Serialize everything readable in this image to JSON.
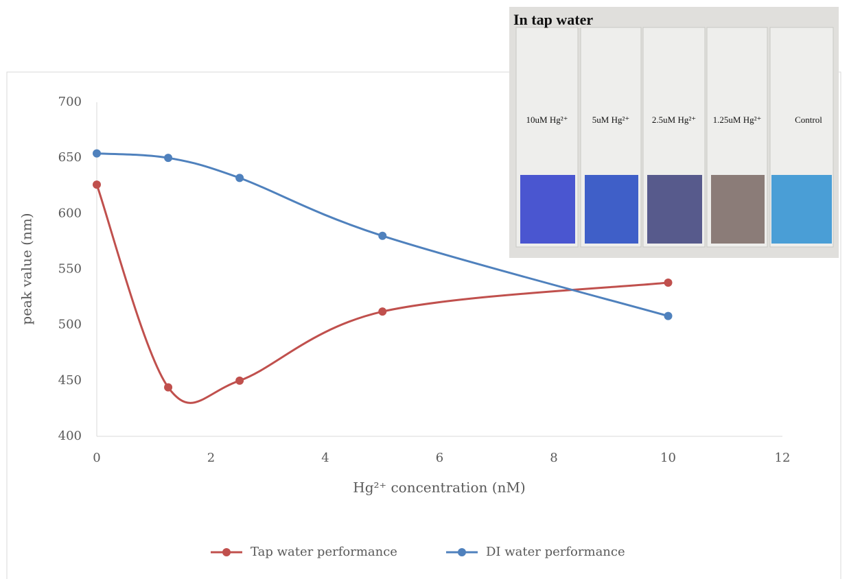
{
  "chart_data": {
    "type": "line",
    "x": [
      0,
      1.25,
      2.5,
      5,
      10
    ],
    "series": [
      {
        "name": "Tap water performance",
        "color": "#c0504d",
        "values": [
          626,
          444,
          450,
          512,
          538
        ]
      },
      {
        "name": "DI water performance",
        "color": "#4f81bd",
        "values": [
          654,
          650,
          632,
          580,
          508
        ]
      }
    ],
    "xlim": [
      0,
      12
    ],
    "xticks": [
      0,
      2,
      4,
      6,
      8,
      10,
      12
    ],
    "ylim": [
      400,
      700
    ],
    "yticks": [
      400,
      450,
      500,
      550,
      600,
      650,
      700
    ],
    "xlabel": "Hg²⁺ concentration (nM)",
    "ylabel": "peak value (nm)",
    "legend": "bottom",
    "grid": false,
    "smooth": true
  },
  "inset": {
    "title": "In tap water",
    "labels": [
      "10uM Hg²⁺",
      "5uM Hg²⁺",
      "2.5uM Hg²⁺",
      "1.25uM Hg²⁺",
      "Control"
    ]
  }
}
